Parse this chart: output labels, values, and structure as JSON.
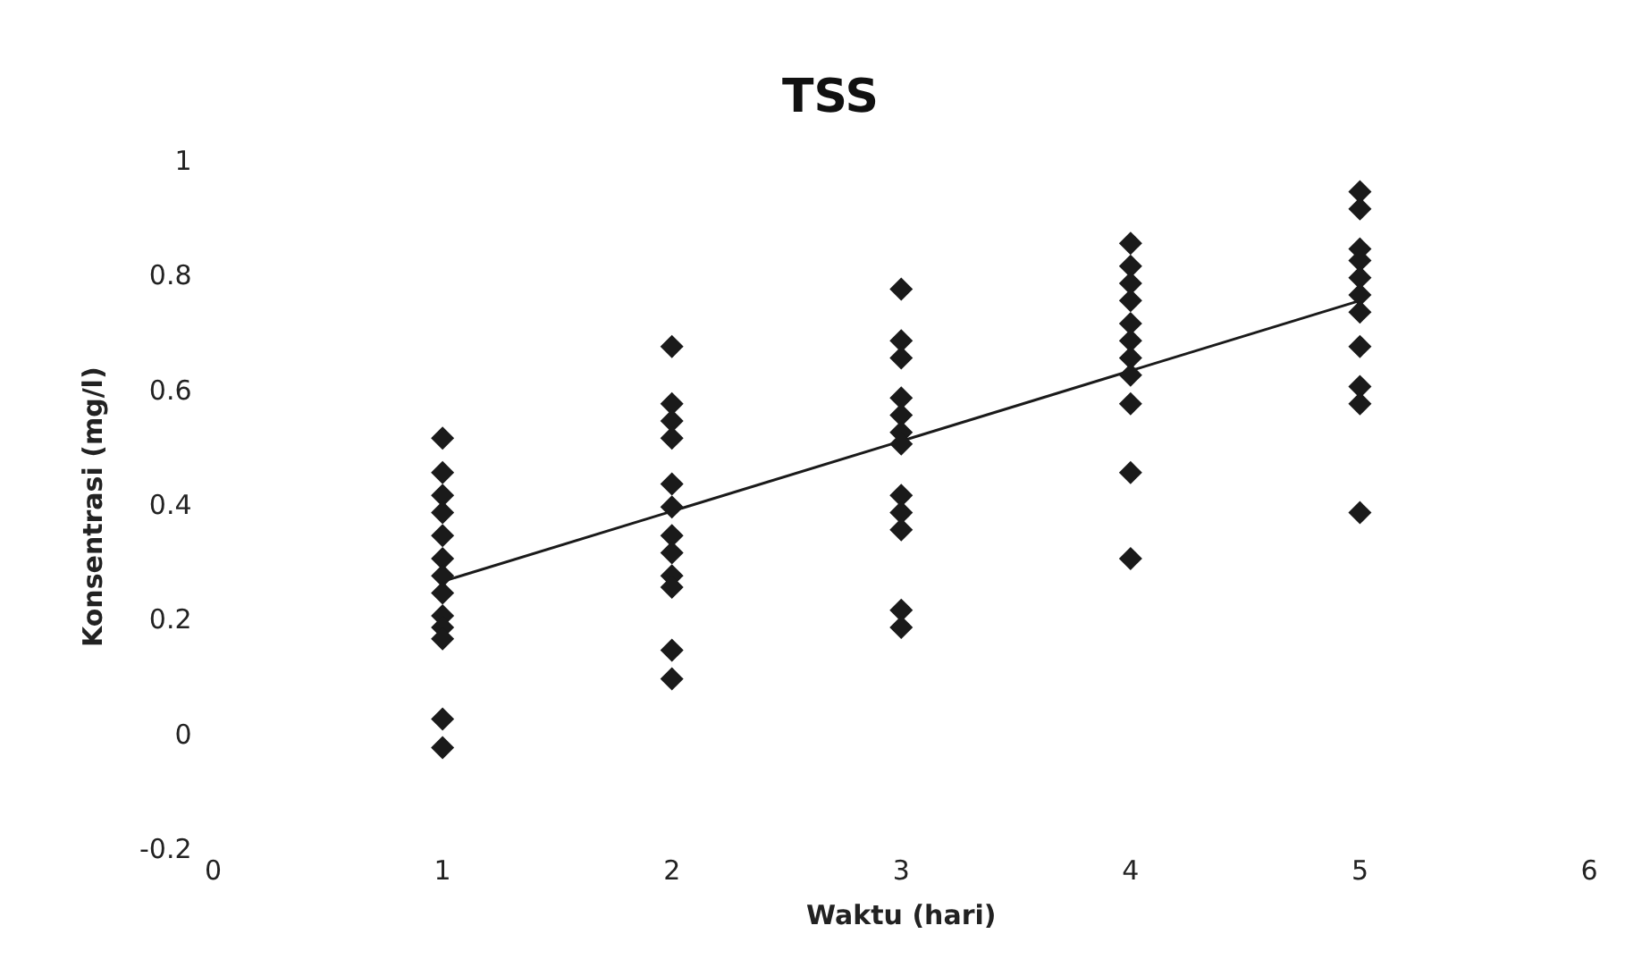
{
  "chart_data": {
    "type": "scatter",
    "title": "TSS",
    "xlabel": "Waktu (hari)",
    "ylabel": "Konsentrasi (mg/l)",
    "xlim": [
      0,
      6
    ],
    "xticks": [
      0,
      1,
      2,
      3,
      4,
      5,
      6
    ],
    "ylim": [
      -0.2,
      1
    ],
    "yticks": [
      -0.2,
      0,
      0.2,
      0.4,
      0.6,
      0.8,
      1
    ],
    "grid": false,
    "legend": false,
    "series": [
      {
        "color": "#1a1a1a",
        "marker": "diamond",
        "x": [
          1,
          1,
          1,
          1,
          1,
          1,
          1,
          1,
          1,
          1,
          1,
          1,
          1,
          2,
          2,
          2,
          2,
          2,
          2,
          2,
          2,
          2,
          2,
          2,
          2,
          3,
          3,
          3,
          3,
          3,
          3,
          3,
          3,
          3,
          3,
          3,
          3,
          4,
          4,
          4,
          4,
          4,
          4,
          4,
          4,
          4,
          4,
          4,
          5,
          5,
          5,
          5,
          5,
          5,
          5,
          5,
          5,
          5,
          5
        ],
        "values": [
          0.52,
          0.46,
          0.42,
          0.39,
          0.35,
          0.31,
          0.28,
          0.25,
          0.21,
          0.19,
          0.17,
          0.03,
          -0.02,
          0.68,
          0.58,
          0.55,
          0.52,
          0.44,
          0.4,
          0.35,
          0.32,
          0.28,
          0.26,
          0.15,
          0.1,
          0.78,
          0.69,
          0.66,
          0.59,
          0.56,
          0.53,
          0.51,
          0.42,
          0.39,
          0.36,
          0.22,
          0.19,
          0.86,
          0.82,
          0.79,
          0.76,
          0.72,
          0.69,
          0.66,
          0.63,
          0.58,
          0.46,
          0.31,
          0.95,
          0.92,
          0.85,
          0.83,
          0.8,
          0.77,
          0.74,
          0.68,
          0.61,
          0.58,
          0.39
        ]
      },
      {
        "type": "line",
        "color": "#1a1a1a",
        "line_style": "solid",
        "marker": "none",
        "x": [
          1,
          5
        ],
        "values": [
          0.27,
          0.76
        ]
      }
    ]
  }
}
